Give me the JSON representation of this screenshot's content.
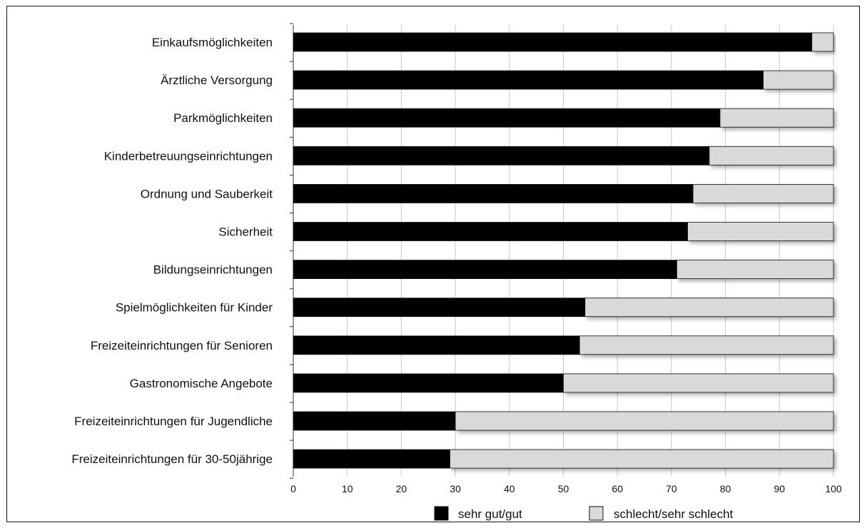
{
  "colors": {
    "positive": "#000000",
    "negative": "#d9d9d9",
    "grid": "#c8c8c8",
    "axis": "#333333"
  },
  "chart_data": {
    "type": "bar",
    "orientation": "horizontal",
    "stacked": true,
    "categories": [
      "Einkaufsmöglichkeiten",
      "Ärztliche Versorgung",
      "Parkmöglichkeiten",
      "Kinderbetreuungseinrichtungen",
      "Ordnung und Sauberkeit",
      "Sicherheit",
      "Bildungseinrichtungen",
      "Spielmöglichkeiten für Kinder",
      "Freizeiteinrichtungen für Senioren",
      "Gastronomische Angebote",
      "Freizeiteinrichtungen für Jugendliche",
      "Freizeiteinrichtungen für 30-50jährige"
    ],
    "series": [
      {
        "name": "sehr gut/gut",
        "values": [
          96,
          87,
          79,
          77,
          74,
          73,
          71,
          54,
          53,
          50,
          30,
          29
        ]
      },
      {
        "name": "schlecht/sehr schlecht",
        "values": [
          4,
          13,
          21,
          23,
          26,
          27,
          29,
          46,
          47,
          50,
          70,
          71
        ]
      }
    ],
    "xlim": [
      0,
      100
    ],
    "xticks": [
      "0",
      "10",
      "20",
      "30",
      "40",
      "50",
      "60",
      "70",
      "80",
      "90",
      "100"
    ],
    "grid": true,
    "legend_position": "bottom"
  }
}
